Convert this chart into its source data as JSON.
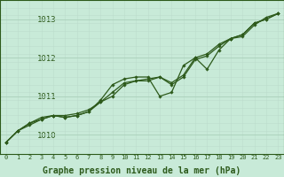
{
  "title": "Graphe pression niveau de la mer (hPa)",
  "x_values": [
    0,
    1,
    2,
    3,
    4,
    5,
    6,
    7,
    8,
    9,
    10,
    11,
    12,
    13,
    14,
    15,
    16,
    17,
    18,
    19,
    20,
    21,
    22,
    23
  ],
  "y_line1": [
    1009.8,
    1010.1,
    1010.3,
    1010.4,
    1010.5,
    1010.45,
    1010.5,
    1010.6,
    1010.9,
    1011.3,
    1011.45,
    1011.5,
    1011.5,
    1011.0,
    1011.1,
    1011.8,
    1012.0,
    1011.7,
    1012.2,
    1012.5,
    1012.55,
    1012.85,
    1013.05,
    1013.15
  ],
  "y_line2": [
    1009.8,
    1010.1,
    1010.25,
    1010.4,
    1010.5,
    1010.5,
    1010.55,
    1010.65,
    1010.85,
    1011.1,
    1011.35,
    1011.4,
    1011.45,
    1011.5,
    1011.35,
    1011.55,
    1012.0,
    1012.1,
    1012.35,
    1012.5,
    1012.6,
    1012.9,
    1013.0,
    1013.15
  ],
  "y_line3": [
    1009.8,
    1010.1,
    1010.3,
    1010.45,
    1010.5,
    1010.45,
    1010.5,
    1010.6,
    1010.85,
    1011.0,
    1011.3,
    1011.4,
    1011.4,
    1011.5,
    1011.3,
    1011.5,
    1011.95,
    1012.05,
    1012.3,
    1012.5,
    1012.6,
    1012.9,
    1013.0,
    1013.15
  ],
  "line_color": "#2d5a1b",
  "bg_color": "#c8ead8",
  "grid_color_major": "#aacfba",
  "grid_color_minor": "#bddccc",
  "ylim": [
    1009.5,
    1013.5
  ],
  "yticks_major": [
    1010,
    1011,
    1012,
    1013
  ],
  "xlim": [
    -0.5,
    23.5
  ],
  "marker_size": 1.8,
  "line_width": 0.9
}
